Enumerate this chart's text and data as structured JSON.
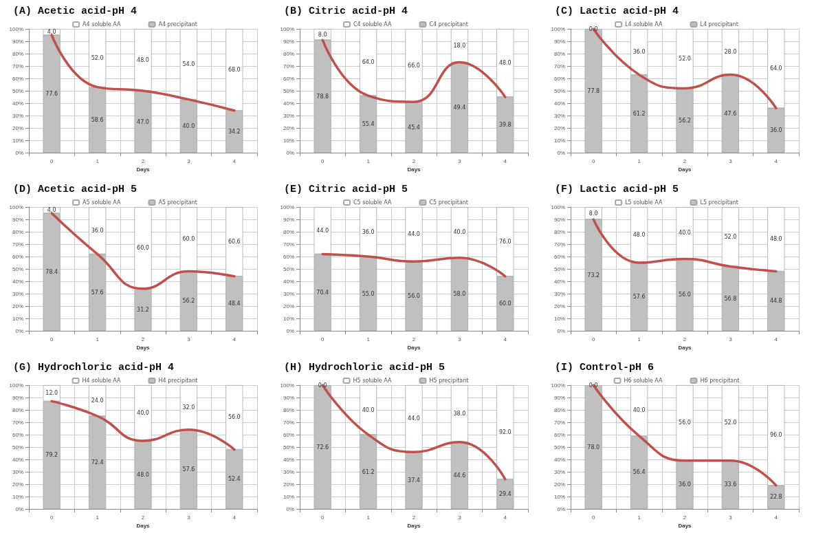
{
  "chart_data": [
    {
      "type": "bar",
      "title": "(A) Acetic acid-pH 4",
      "xlabel": "Days",
      "categories": [
        "0",
        "1",
        "2",
        "3",
        "4"
      ],
      "stacked": true,
      "legend": "top",
      "grid": true,
      "marker": "none",
      "ylim": [
        0,
        100
      ],
      "yticks": [
        {
          "value": 0,
          "label": "0%"
        },
        {
          "value": 10,
          "label": "10%"
        },
        {
          "value": 20,
          "label": "20%"
        },
        {
          "value": 30,
          "label": "30%"
        },
        {
          "value": 40,
          "label": "40%"
        },
        {
          "value": 50,
          "label": "50%"
        },
        {
          "value": 60,
          "label": "60%"
        },
        {
          "value": 70,
          "label": "70%"
        },
        {
          "value": 80,
          "label": "80%"
        },
        {
          "value": 90,
          "label": "90%"
        },
        {
          "value": 100,
          "label": "100%"
        }
      ],
      "series": [
        {
          "name": "A4 precipitant",
          "color": "#c0c0c0",
          "values": [
            95,
            53,
            50,
            43,
            34
          ]
        },
        {
          "name": "A4 soluble AA",
          "color": "#ffffff",
          "values": [
            5,
            47,
            50,
            57,
            66
          ]
        },
        {
          "type": "line",
          "color": "#c0504d",
          "values": [
            95,
            53,
            50,
            43,
            34
          ]
        }
      ],
      "annotations": [
        "77.6",
        "58.6",
        "47.0",
        "40.0",
        "34.2",
        "4.0",
        "52.0",
        "48.0",
        "54.0",
        "68.0"
      ]
    },
    {
      "type": "bar",
      "title": "(B) Citric acid-pH 4",
      "xlabel": "Days",
      "categories": [
        "0",
        "1",
        "2",
        "3",
        "4"
      ],
      "stacked": true,
      "legend": "top",
      "grid": true,
      "marker": "none",
      "ylim": [
        0,
        100
      ],
      "yticks": [
        {
          "value": 0,
          "label": "0%"
        },
        {
          "value": 10,
          "label": "10%"
        },
        {
          "value": 20,
          "label": "20%"
        },
        {
          "value": 30,
          "label": "30%"
        },
        {
          "value": 40,
          "label": "40%"
        },
        {
          "value": 50,
          "label": "50%"
        },
        {
          "value": 60,
          "label": "60%"
        },
        {
          "value": 70,
          "label": "70%"
        },
        {
          "value": 80,
          "label": "80%"
        },
        {
          "value": 90,
          "label": "90%"
        },
        {
          "value": 100,
          "label": "100%"
        }
      ],
      "series": [
        {
          "name": "C4 precipitant",
          "color": "#c0c0c0",
          "values": [
            91,
            46,
            41,
            73,
            45
          ]
        },
        {
          "name": "C4 soluble AA",
          "color": "#ffffff",
          "values": [
            9,
            54,
            59,
            27,
            55
          ]
        },
        {
          "type": "line",
          "color": "#c0504d",
          "values": [
            91,
            46,
            41,
            73,
            45
          ]
        }
      ],
      "annotations": [
        "78.8",
        "55.4",
        "45.4",
        "49.4",
        "39.8",
        "8.0",
        "64.0",
        "66.0",
        "18.0",
        "48.0"
      ]
    },
    {
      "type": "bar",
      "title": "(C) Lactic acid-pH 4",
      "xlabel": "Days",
      "categories": [
        "0",
        "1",
        "2",
        "3",
        "4"
      ],
      "stacked": true,
      "legend": "top",
      "grid": true,
      "marker": "none",
      "ylim": [
        0,
        100
      ],
      "yticks": [
        {
          "value": 0,
          "label": "0%"
        },
        {
          "value": 10,
          "label": "10%"
        },
        {
          "value": 20,
          "label": "20%"
        },
        {
          "value": 30,
          "label": "30%"
        },
        {
          "value": 40,
          "label": "40%"
        },
        {
          "value": 50,
          "label": "50%"
        },
        {
          "value": 60,
          "label": "60%"
        },
        {
          "value": 70,
          "label": "70%"
        },
        {
          "value": 80,
          "label": "80%"
        },
        {
          "value": 90,
          "label": "90%"
        },
        {
          "value": 100,
          "label": "100%"
        }
      ],
      "series": [
        {
          "name": "L4 precipitant",
          "color": "#c0c0c0",
          "values": [
            100,
            63,
            52,
            63,
            36
          ]
        },
        {
          "name": "L4 soluble AA",
          "color": "#ffffff",
          "values": [
            0,
            37,
            48,
            37,
            64
          ]
        },
        {
          "type": "line",
          "color": "#c0504d",
          "values": [
            100,
            63,
            52,
            63,
            36
          ]
        }
      ],
      "annotations": [
        "77.8",
        "61.2",
        "56.2",
        "47.6",
        "36.0",
        "0.0",
        "36.0",
        "52.0",
        "28.0",
        "64.0"
      ]
    },
    {
      "type": "bar",
      "title": "(D) Acetic acid-pH 5",
      "xlabel": "Days",
      "categories": [
        "0",
        "1",
        "2",
        "3",
        "4"
      ],
      "stacked": true,
      "legend": "top",
      "grid": true,
      "marker": "none",
      "ylim": [
        0,
        100
      ],
      "yticks": [
        {
          "value": 0,
          "label": "0%"
        },
        {
          "value": 10,
          "label": "10%"
        },
        {
          "value": 20,
          "label": "20%"
        },
        {
          "value": 30,
          "label": "30%"
        },
        {
          "value": 40,
          "label": "40%"
        },
        {
          "value": 50,
          "label": "50%"
        },
        {
          "value": 60,
          "label": "60%"
        },
        {
          "value": 70,
          "label": "70%"
        },
        {
          "value": 80,
          "label": "80%"
        },
        {
          "value": 90,
          "label": "90%"
        },
        {
          "value": 100,
          "label": "100%"
        }
      ],
      "series": [
        {
          "name": "A5 precipitant",
          "color": "#c0c0c0",
          "values": [
            95,
            62,
            34,
            48,
            44
          ]
        },
        {
          "name": "A5 soluble AA",
          "color": "#ffffff",
          "values": [
            5,
            38,
            66,
            52,
            56
          ]
        },
        {
          "type": "line",
          "color": "#c0504d",
          "values": [
            95,
            62,
            34,
            48,
            44
          ]
        }
      ],
      "annotations": [
        "78.4",
        "57.6",
        "31.2",
        "56.2",
        "48.4",
        "4.0",
        "36.0",
        "60.0",
        "60.0",
        "60.6"
      ]
    },
    {
      "type": "bar",
      "title": "(E) Citric acid-pH 5",
      "xlabel": "Days",
      "categories": [
        "0",
        "1",
        "2",
        "3",
        "4"
      ],
      "stacked": true,
      "legend": "top",
      "grid": true,
      "marker": "none",
      "ylim": [
        0,
        100
      ],
      "yticks": [
        {
          "value": 0,
          "label": "0%"
        },
        {
          "value": 10,
          "label": "10%"
        },
        {
          "value": 20,
          "label": "20%"
        },
        {
          "value": 30,
          "label": "30%"
        },
        {
          "value": 40,
          "label": "40%"
        },
        {
          "value": 50,
          "label": "50%"
        },
        {
          "value": 60,
          "label": "60%"
        },
        {
          "value": 70,
          "label": "70%"
        },
        {
          "value": 80,
          "label": "80%"
        },
        {
          "value": 90,
          "label": "90%"
        },
        {
          "value": 100,
          "label": "100%"
        }
      ],
      "series": [
        {
          "name": "C5 precipitant",
          "color": "#c0c0c0",
          "values": [
            62,
            60,
            56,
            59,
            44
          ]
        },
        {
          "name": "C5 soluble AA",
          "color": "#ffffff",
          "values": [
            38,
            40,
            44,
            41,
            56
          ]
        },
        {
          "type": "line",
          "color": "#c0504d",
          "values": [
            62,
            60,
            56,
            59,
            44
          ]
        }
      ],
      "annotations": [
        "70.4",
        "55.0",
        "56.0",
        "58.0",
        "60.0",
        "44.0",
        "36.0",
        "44.0",
        "40.0",
        "76.0"
      ]
    },
    {
      "type": "bar",
      "title": "(F) Lactic acid-pH 5",
      "xlabel": "Days",
      "categories": [
        "0",
        "1",
        "2",
        "3",
        "4"
      ],
      "stacked": true,
      "legend": "top",
      "grid": true,
      "marker": "none",
      "ylim": [
        0,
        100
      ],
      "yticks": [
        {
          "value": 0,
          "label": "0%"
        },
        {
          "value": 10,
          "label": "10%"
        },
        {
          "value": 20,
          "label": "20%"
        },
        {
          "value": 30,
          "label": "30%"
        },
        {
          "value": 40,
          "label": "40%"
        },
        {
          "value": 50,
          "label": "50%"
        },
        {
          "value": 60,
          "label": "60%"
        },
        {
          "value": 70,
          "label": "70%"
        },
        {
          "value": 80,
          "label": "80%"
        },
        {
          "value": 90,
          "label": "90%"
        },
        {
          "value": 100,
          "label": "100%"
        }
      ],
      "series": [
        {
          "name": "L5 precipitant",
          "color": "#c0c0c0",
          "values": [
            90,
            55,
            58,
            52,
            48
          ]
        },
        {
          "name": "L5 soluble AA",
          "color": "#ffffff",
          "values": [
            10,
            45,
            42,
            48,
            52
          ]
        },
        {
          "type": "line",
          "color": "#c0504d",
          "values": [
            90,
            55,
            58,
            52,
            48
          ]
        }
      ],
      "annotations": [
        "73.2",
        "57.6",
        "56.0",
        "56.8",
        "44.8",
        "8.0",
        "48.0",
        "40.0",
        "52.0",
        "48.0"
      ]
    },
    {
      "type": "bar",
      "title": "(G) Hydrochloric acid-pH 4",
      "xlabel": "Days",
      "categories": [
        "0",
        "1",
        "2",
        "3",
        "4"
      ],
      "stacked": true,
      "legend": "top",
      "grid": true,
      "marker": "none",
      "ylim": [
        0,
        100
      ],
      "yticks": [
        {
          "value": 0,
          "label": "0%"
        },
        {
          "value": 10,
          "label": "10%"
        },
        {
          "value": 20,
          "label": "20%"
        },
        {
          "value": 30,
          "label": "30%"
        },
        {
          "value": 40,
          "label": "40%"
        },
        {
          "value": 50,
          "label": "50%"
        },
        {
          "value": 60,
          "label": "60%"
        },
        {
          "value": 70,
          "label": "70%"
        },
        {
          "value": 80,
          "label": "80%"
        },
        {
          "value": 90,
          "label": "90%"
        },
        {
          "value": 100,
          "label": "100%"
        }
      ],
      "series": [
        {
          "name": "H4 precipitant",
          "color": "#c0c0c0",
          "values": [
            87,
            75,
            55,
            64,
            48
          ]
        },
        {
          "name": "H4 soluble AA",
          "color": "#ffffff",
          "values": [
            13,
            25,
            45,
            36,
            52
          ]
        },
        {
          "type": "line",
          "color": "#c0504d",
          "values": [
            87,
            75,
            55,
            64,
            48
          ]
        }
      ],
      "annotations": [
        "79.2",
        "72.4",
        "48.0",
        "57.6",
        "52.4",
        "12.0",
        "24.0",
        "40.0",
        "32.0",
        "56.0"
      ]
    },
    {
      "type": "bar",
      "title": "(H) Hydrochloric acid-pH 5",
      "xlabel": "Days",
      "categories": [
        "0",
        "1",
        "2",
        "3",
        "4"
      ],
      "stacked": true,
      "legend": "top",
      "grid": true,
      "marker": "none",
      "ylim": [
        0,
        100
      ],
      "yticks": [
        {
          "value": 0,
          "label": "0%"
        },
        {
          "value": 10,
          "label": "10%"
        },
        {
          "value": 20,
          "label": "20%"
        },
        {
          "value": 30,
          "label": "30%"
        },
        {
          "value": 40,
          "label": "40%"
        },
        {
          "value": 50,
          "label": "50%"
        },
        {
          "value": 60,
          "label": "60%"
        },
        {
          "value": 70,
          "label": "70%"
        },
        {
          "value": 80,
          "label": "80%"
        },
        {
          "value": 90,
          "label": "90%"
        },
        {
          "value": 100,
          "label": "100%"
        }
      ],
      "series": [
        {
          "name": "H5 precipitant",
          "color": "#c0c0c0",
          "values": [
            100,
            60,
            46,
            54,
            24
          ]
        },
        {
          "name": "H5 soluble AA",
          "color": "#ffffff",
          "values": [
            0,
            40,
            54,
            46,
            76
          ]
        },
        {
          "type": "line",
          "color": "#c0504d",
          "values": [
            100,
            60,
            46,
            54,
            24
          ]
        }
      ],
      "annotations": [
        "72.6",
        "61.2",
        "37.4",
        "44.6",
        "29.4",
        "0.0",
        "40.0",
        "44.0",
        "38.0",
        "92.0"
      ]
    },
    {
      "type": "bar",
      "title": "(I) Control-pH 6",
      "xlabel": "Days",
      "categories": [
        "0",
        "1",
        "2",
        "3",
        "4"
      ],
      "stacked": true,
      "legend": "top",
      "grid": true,
      "marker": "none",
      "ylim": [
        0,
        100
      ],
      "yticks": [
        {
          "value": 0,
          "label": "0%"
        },
        {
          "value": 10,
          "label": "10%"
        },
        {
          "value": 20,
          "label": "20%"
        },
        {
          "value": 30,
          "label": "30%"
        },
        {
          "value": 40,
          "label": "40%"
        },
        {
          "value": 50,
          "label": "50%"
        },
        {
          "value": 60,
          "label": "60%"
        },
        {
          "value": 70,
          "label": "70%"
        },
        {
          "value": 80,
          "label": "80%"
        },
        {
          "value": 90,
          "label": "90%"
        },
        {
          "value": 100,
          "label": "100%"
        }
      ],
      "series": [
        {
          "name": "H6 precipitant",
          "color": "#c0c0c0",
          "values": [
            100,
            59,
            39,
            39,
            19
          ]
        },
        {
          "name": "H6 soluble AA",
          "color": "#ffffff",
          "values": [
            0,
            41,
            61,
            61,
            81
          ]
        },
        {
          "type": "line",
          "color": "#c0504d",
          "values": [
            100,
            59,
            39,
            39,
            19
          ]
        }
      ],
      "annotations": [
        "78.0",
        "56.4",
        "36.0",
        "33.6",
        "22.8",
        "0.0",
        "40.0",
        "56.0",
        "52.0",
        "96.0"
      ]
    }
  ]
}
